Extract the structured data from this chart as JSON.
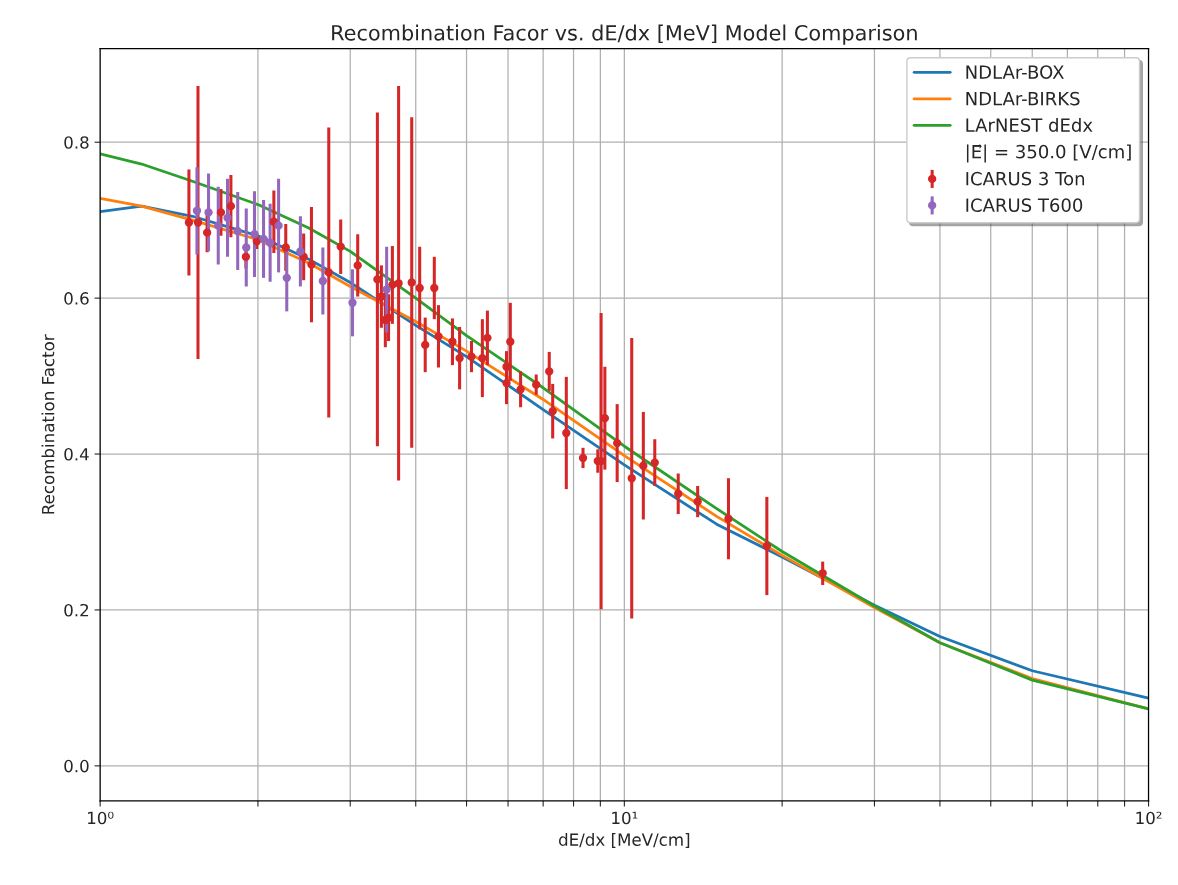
{
  "chart_data": {
    "type": "line",
    "title": "Recombination Facor vs. dE/dx [MeV] Model Comparison",
    "xlabel": "dE/dx [MeV/cm]",
    "ylabel": "Recombination Factor",
    "log": "x",
    "grid": true,
    "legend": "top right",
    "xlim": [
      1,
      100
    ],
    "ylim": [
      -0.045,
      0.92
    ],
    "xticks": [
      {
        "value": 1,
        "label": "10⁰"
      },
      {
        "value": 2,
        "label": null
      },
      {
        "value": 3,
        "label": null
      },
      {
        "value": 4,
        "label": null
      },
      {
        "value": 5,
        "label": null
      },
      {
        "value": 6,
        "label": null
      },
      {
        "value": 7,
        "label": null
      },
      {
        "value": 8,
        "label": null
      },
      {
        "value": 9,
        "label": null
      },
      {
        "value": 10,
        "label": "10¹"
      },
      {
        "value": 20,
        "label": null
      },
      {
        "value": 30,
        "label": null
      },
      {
        "value": 40,
        "label": null
      },
      {
        "value": 50,
        "label": null
      },
      {
        "value": 60,
        "label": null
      },
      {
        "value": 70,
        "label": null
      },
      {
        "value": 80,
        "label": null
      },
      {
        "value": 90,
        "label": null
      },
      {
        "value": 100,
        "label": "10²"
      }
    ],
    "yticks": [
      {
        "value": 0,
        "label": "0.0"
      },
      {
        "value": 0.2,
        "label": "0.2"
      },
      {
        "value": 0.4,
        "label": "0.4"
      },
      {
        "value": 0.6,
        "label": "0.6"
      },
      {
        "value": 0.8,
        "label": "0.8"
      }
    ],
    "annotations": [
      "|E⃗| = 350.0 [V/cm]"
    ],
    "series": [
      {
        "name": "NDLAr-BOX",
        "color": "#1f77b4",
        "x": [
          1,
          1.2,
          1.5,
          2,
          2.5,
          3,
          4,
          5,
          7,
          10,
          15,
          20,
          30,
          40,
          60,
          100
        ],
        "values": [
          0.711,
          0.718,
          0.705,
          0.68,
          0.65,
          0.62,
          0.565,
          0.525,
          0.457,
          0.386,
          0.31,
          0.268,
          0.206,
          0.166,
          0.122,
          0.087
        ]
      },
      {
        "name": "NDLAr-BIRKS",
        "color": "#ff7f0e",
        "x": [
          1,
          1.2,
          1.5,
          2,
          2.5,
          3,
          4,
          5,
          7,
          10,
          15,
          20,
          30,
          40,
          60,
          100
        ],
        "values": [
          0.728,
          0.718,
          0.7,
          0.675,
          0.645,
          0.615,
          0.57,
          0.532,
          0.47,
          0.398,
          0.32,
          0.27,
          0.203,
          0.158,
          0.112,
          0.073
        ]
      },
      {
        "name": "LArNEST dEdx",
        "color": "#2ca02c",
        "x": [
          1,
          1.2,
          1.5,
          2,
          2.5,
          3,
          4,
          5,
          7,
          10,
          15,
          20,
          30,
          40,
          60,
          100
        ],
        "values": [
          0.785,
          0.772,
          0.75,
          0.72,
          0.69,
          0.66,
          0.6,
          0.552,
          0.485,
          0.41,
          0.33,
          0.275,
          0.205,
          0.158,
          0.11,
          0.073
        ]
      },
      {
        "name": "ICARUS 3 Ton",
        "type": "scatter",
        "marker": "circle",
        "color": "#d62728",
        "x": [
          1.477,
          1.537,
          1.6,
          1.7,
          1.776,
          1.897,
          1.99,
          2.145,
          2.26,
          2.445,
          2.53,
          2.73,
          2.877,
          3.1,
          3.38,
          3.44,
          3.5,
          3.55,
          3.61,
          3.71,
          3.93,
          4.07,
          4.17,
          4.34,
          4.42,
          4.7,
          4.85,
          5.11,
          5.36,
          5.48,
          5.96,
          5.96,
          6.06,
          6.34,
          6.79,
          7.19,
          7.3,
          7.75,
          8.34,
          8.9,
          9.03,
          9.18,
          9.69,
          10.33,
          10.87,
          11.43,
          12.67,
          13.8,
          15.8,
          18.7,
          23.9
        ],
        "values": [
          0.697,
          0.697,
          0.684,
          0.71,
          0.718,
          0.653,
          0.673,
          0.698,
          0.665,
          0.653,
          0.643,
          0.633,
          0.666,
          0.642,
          0.624,
          0.602,
          0.572,
          0.575,
          0.617,
          0.619,
          0.62,
          0.613,
          0.54,
          0.613,
          0.551,
          0.544,
          0.523,
          0.525,
          0.523,
          0.549,
          0.491,
          0.512,
          0.544,
          0.483,
          0.489,
          0.506,
          0.455,
          0.427,
          0.395,
          0.391,
          0.391,
          0.446,
          0.414,
          0.369,
          0.385,
          0.389,
          0.349,
          0.339,
          0.317,
          0.282,
          0.247
        ],
        "errors": [
          0.068,
          0.175,
          0.025,
          0.03,
          0.04,
          0.015,
          0.01,
          0.04,
          0.03,
          0.03,
          0.074,
          0.186,
          0.035,
          0.04,
          0.214,
          0.04,
          0.035,
          0.03,
          0.05,
          0.253,
          0.212,
          0.053,
          0.035,
          0.04,
          0.04,
          0.03,
          0.04,
          0.02,
          0.05,
          0.035,
          0.027,
          0.02,
          0.05,
          0.023,
          0.013,
          0.025,
          0.035,
          0.072,
          0.013,
          0.015,
          0.19,
          0.066,
          0.05,
          0.18,
          0.069,
          0.03,
          0.026,
          0.02,
          0.052,
          0.063,
          0.015
        ]
      },
      {
        "name": "ICARUS T600",
        "type": "scatter",
        "marker": "circle",
        "color": "#9467bd",
        "x": [
          1.53,
          1.61,
          1.68,
          1.75,
          1.83,
          1.9,
          1.97,
          2.05,
          2.11,
          2.19,
          2.27,
          2.41,
          2.66,
          3.03,
          3.52
        ],
        "values": [
          0.712,
          0.71,
          0.693,
          0.703,
          0.686,
          0.665,
          0.682,
          0.676,
          0.671,
          0.693,
          0.626,
          0.66,
          0.622,
          0.594,
          0.611
        ],
        "errors": [
          0.056,
          0.05,
          0.05,
          0.05,
          0.05,
          0.05,
          0.055,
          0.05,
          0.05,
          0.06,
          0.043,
          0.045,
          0.043,
          0.043,
          0.055
        ]
      }
    ]
  }
}
